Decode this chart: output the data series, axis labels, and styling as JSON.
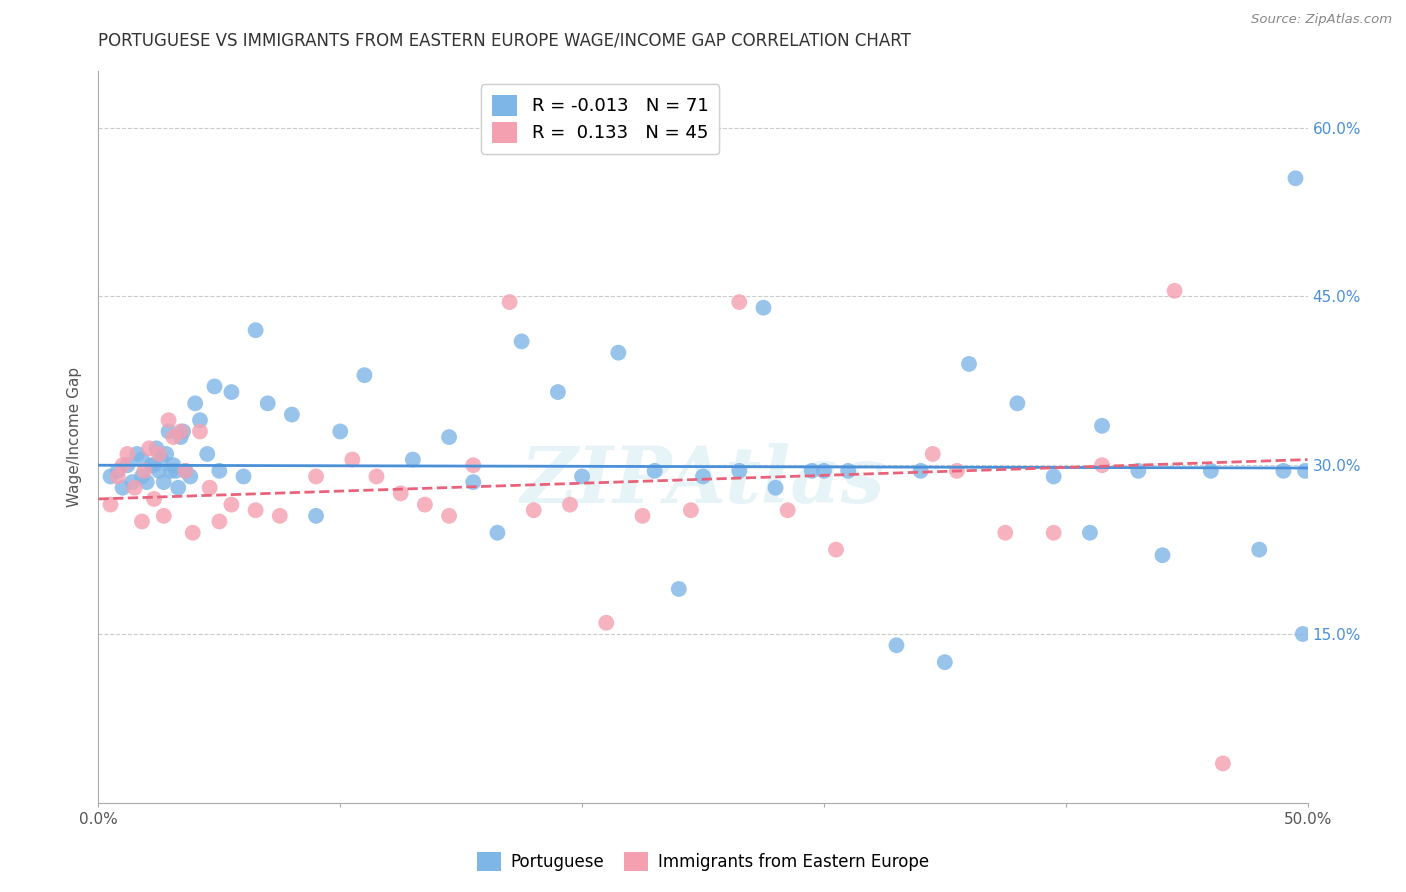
{
  "title": "PORTUGUESE VS IMMIGRANTS FROM EASTERN EUROPE WAGE/INCOME GAP CORRELATION CHART",
  "source": "Source: ZipAtlas.com",
  "ylabel": "Wage/Income Gap",
  "xlim": [
    0.0,
    0.5
  ],
  "ylim": [
    0.0,
    0.65
  ],
  "xticks": [
    0.0,
    0.1,
    0.2,
    0.3,
    0.4,
    0.5
  ],
  "xticklabels": [
    "0.0%",
    "",
    "",
    "",
    "",
    "50.0%"
  ],
  "yticks": [
    0.15,
    0.3,
    0.45,
    0.6
  ],
  "yticklabels_right": [
    "15.0%",
    "30.0%",
    "45.0%",
    "60.0%"
  ],
  "grid_color": "#cccccc",
  "background_color": "#ffffff",
  "blue_color": "#7eb6e8",
  "pink_color": "#f4a0b0",
  "blue_line_color": "#4a90d9",
  "pink_line_color": "#e8637a",
  "legend_R1": "-0.013",
  "legend_N1": "71",
  "legend_R2": "0.133",
  "legend_N2": "45",
  "legend_label1": "Portuguese",
  "legend_label2": "Immigrants from Eastern Europe",
  "watermark": "ZIPAtlas",
  "blue_scatter_x": [
    0.005,
    0.008,
    0.01,
    0.012,
    0.014,
    0.016,
    0.018,
    0.018,
    0.02,
    0.022,
    0.023,
    0.024,
    0.025,
    0.026,
    0.027,
    0.028,
    0.029,
    0.03,
    0.031,
    0.032,
    0.033,
    0.034,
    0.035,
    0.036,
    0.038,
    0.04,
    0.042,
    0.045,
    0.048,
    0.05,
    0.055,
    0.06,
    0.065,
    0.07,
    0.08,
    0.09,
    0.1,
    0.11,
    0.13,
    0.145,
    0.155,
    0.165,
    0.175,
    0.19,
    0.2,
    0.215,
    0.23,
    0.24,
    0.25,
    0.265,
    0.28,
    0.3,
    0.31,
    0.33,
    0.35,
    0.36,
    0.38,
    0.395,
    0.41,
    0.43,
    0.44,
    0.46,
    0.48,
    0.49,
    0.495,
    0.498,
    0.499,
    0.34,
    0.415,
    0.275,
    0.295
  ],
  "blue_scatter_y": [
    0.29,
    0.295,
    0.28,
    0.3,
    0.285,
    0.31,
    0.29,
    0.305,
    0.285,
    0.3,
    0.3,
    0.315,
    0.295,
    0.305,
    0.285,
    0.31,
    0.33,
    0.295,
    0.3,
    0.295,
    0.28,
    0.325,
    0.33,
    0.295,
    0.29,
    0.355,
    0.34,
    0.31,
    0.37,
    0.295,
    0.365,
    0.29,
    0.42,
    0.355,
    0.345,
    0.255,
    0.33,
    0.38,
    0.305,
    0.325,
    0.285,
    0.24,
    0.41,
    0.365,
    0.29,
    0.4,
    0.295,
    0.19,
    0.29,
    0.295,
    0.28,
    0.295,
    0.295,
    0.14,
    0.125,
    0.39,
    0.355,
    0.29,
    0.24,
    0.295,
    0.22,
    0.295,
    0.225,
    0.295,
    0.555,
    0.15,
    0.295,
    0.295,
    0.335,
    0.44,
    0.295
  ],
  "pink_scatter_x": [
    0.005,
    0.008,
    0.01,
    0.012,
    0.015,
    0.018,
    0.019,
    0.021,
    0.023,
    0.025,
    0.027,
    0.029,
    0.031,
    0.034,
    0.036,
    0.039,
    0.042,
    0.046,
    0.05,
    0.055,
    0.065,
    0.075,
    0.09,
    0.105,
    0.115,
    0.125,
    0.135,
    0.145,
    0.155,
    0.17,
    0.18,
    0.195,
    0.21,
    0.225,
    0.245,
    0.265,
    0.285,
    0.305,
    0.355,
    0.375,
    0.395,
    0.415,
    0.445,
    0.465,
    0.345
  ],
  "pink_scatter_y": [
    0.265,
    0.29,
    0.3,
    0.31,
    0.28,
    0.25,
    0.295,
    0.315,
    0.27,
    0.31,
    0.255,
    0.34,
    0.325,
    0.33,
    0.295,
    0.24,
    0.33,
    0.28,
    0.25,
    0.265,
    0.26,
    0.255,
    0.29,
    0.305,
    0.29,
    0.275,
    0.265,
    0.255,
    0.3,
    0.445,
    0.26,
    0.265,
    0.16,
    0.255,
    0.26,
    0.445,
    0.26,
    0.225,
    0.295,
    0.24,
    0.24,
    0.3,
    0.455,
    0.035,
    0.31
  ]
}
